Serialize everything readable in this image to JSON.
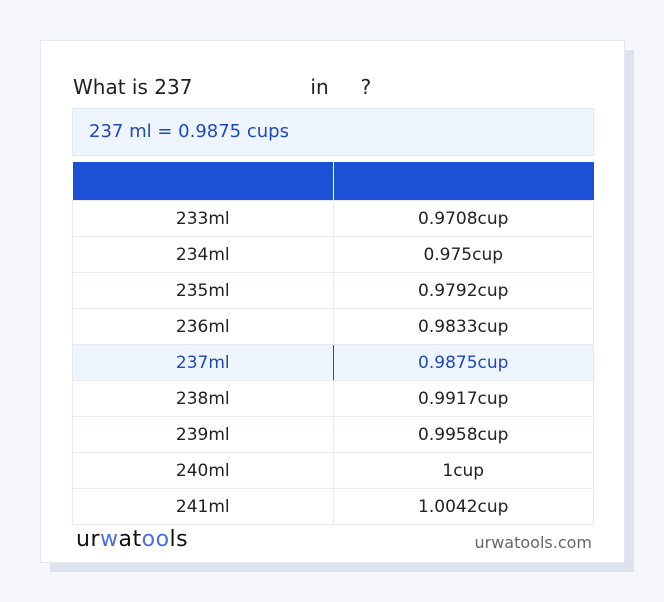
{
  "title": {
    "prefix": "What is 237",
    "mid": "in",
    "suffix": "?"
  },
  "result": "237 ml = 0.9875 cups",
  "table": {
    "headers": [
      "",
      ""
    ],
    "rows": [
      [
        "233ml",
        "0.9708cup"
      ],
      [
        "234ml",
        "0.975cup"
      ],
      [
        "235ml",
        "0.9792cup"
      ],
      [
        "236ml",
        "0.9833cup"
      ],
      [
        "237ml",
        "0.9875cup"
      ],
      [
        "238ml",
        "0.9917cup"
      ],
      [
        "239ml",
        "0.9958cup"
      ],
      [
        "240ml",
        "1cup"
      ],
      [
        "241ml",
        "1.0042cup"
      ]
    ],
    "highlight_index": 4
  },
  "footer": {
    "logo": "urwatools",
    "site": "urwatools.com"
  },
  "colors": {
    "accent": "#1c50d6",
    "highlight_bg": "#eef5ff",
    "highlight_text": "#2148b8"
  }
}
